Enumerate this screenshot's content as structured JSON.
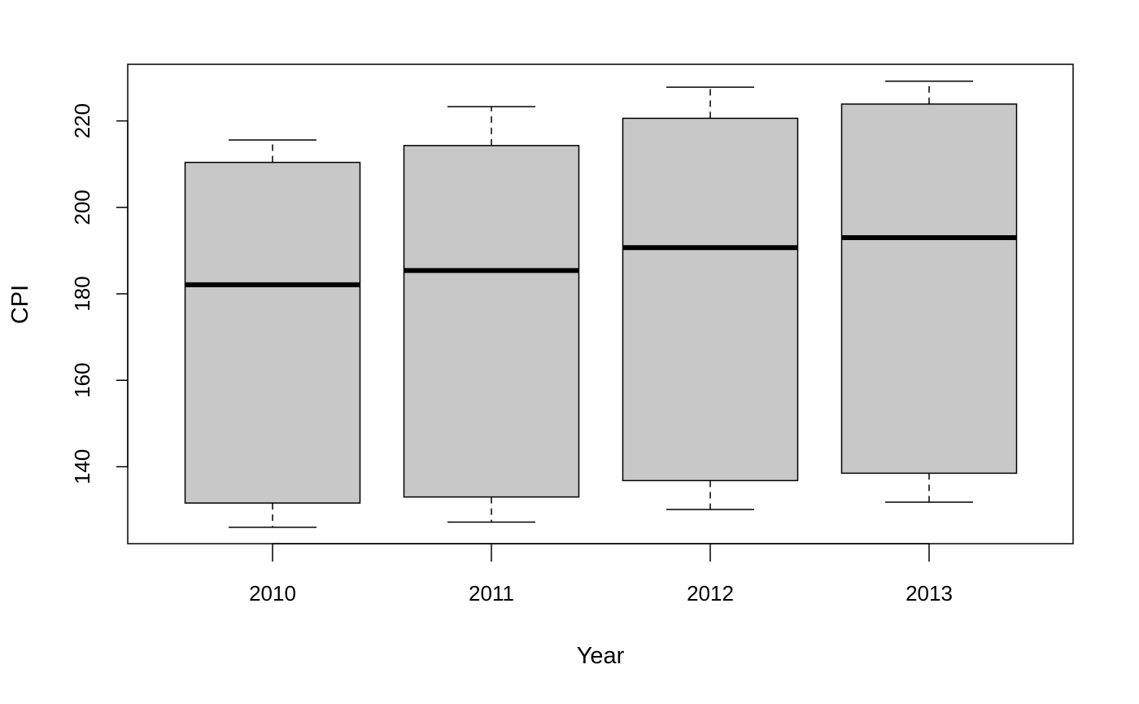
{
  "chart_data": {
    "type": "boxplot",
    "xlabel": "Year",
    "ylabel": "CPI",
    "categories": [
      "2010",
      "2011",
      "2012",
      "2013"
    ],
    "boxes": [
      {
        "category": "2010",
        "whisker_low": 126.0,
        "q1": 131.6,
        "median": 182.1,
        "q3": 210.4,
        "whisker_high": 215.6
      },
      {
        "category": "2011",
        "whisker_low": 127.2,
        "q1": 133.0,
        "median": 185.4,
        "q3": 214.3,
        "whisker_high": 223.3
      },
      {
        "category": "2012",
        "whisker_low": 130.1,
        "q1": 136.8,
        "median": 190.7,
        "q3": 220.6,
        "whisker_high": 227.8
      },
      {
        "category": "2013",
        "whisker_low": 131.8,
        "q1": 138.5,
        "median": 193.0,
        "q3": 223.9,
        "whisker_high": 229.2
      }
    ],
    "yticks": [
      140,
      160,
      180,
      200,
      220
    ],
    "ylim": [
      122.2,
      233.1
    ],
    "grid": false,
    "colors": {
      "box_fill": "#c8c8c8",
      "stroke": "#000000"
    }
  }
}
